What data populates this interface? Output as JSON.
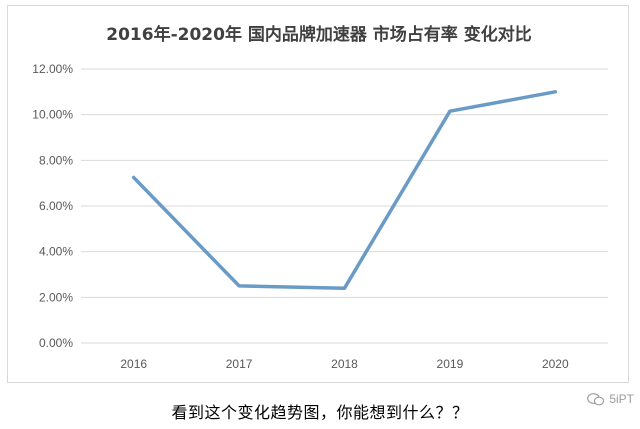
{
  "caption": "看到这个变化趋势图，你能想到什么？？",
  "watermark": "5iPT",
  "colors": {
    "line": "#6a9bc6",
    "grid": "#d9d9d9",
    "axis_text": "#595959",
    "title": "#404040"
  },
  "chart_data": {
    "type": "line",
    "title": "2016年-2020年 国内品牌加速器 市场占有率 变化对比",
    "xlabel": "",
    "ylabel": "",
    "categories": [
      "2016",
      "2017",
      "2018",
      "2019",
      "2020"
    ],
    "series": [
      {
        "values": [
          7.25,
          2.5,
          2.4,
          10.15,
          11.0
        ]
      }
    ],
    "ylim": [
      0,
      12
    ],
    "yticks": [
      "0.00%",
      "2.00%",
      "4.00%",
      "6.00%",
      "8.00%",
      "10.00%",
      "12.00%"
    ],
    "grid": true,
    "legend": "none"
  }
}
